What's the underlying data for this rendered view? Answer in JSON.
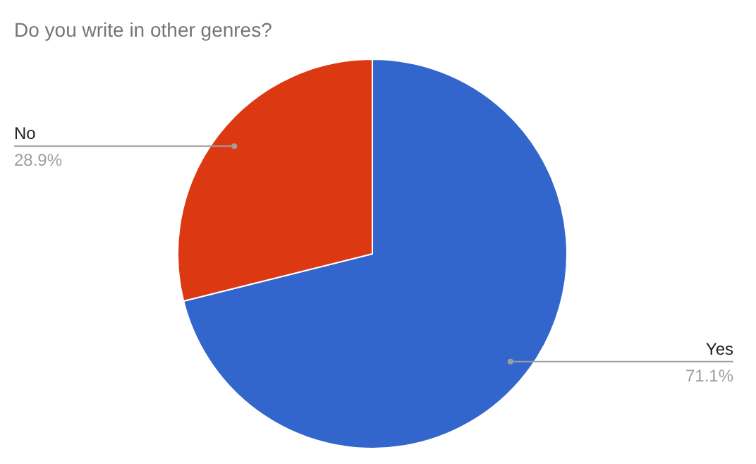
{
  "chart_data": {
    "type": "pie",
    "title": "Do you write in other genres?",
    "categories": [
      "Yes",
      "No"
    ],
    "values": [
      71.1,
      28.9
    ],
    "colors": [
      "#3366cc",
      "#dc3912"
    ],
    "value_labels": [
      "71.1%",
      "28.9%"
    ]
  }
}
